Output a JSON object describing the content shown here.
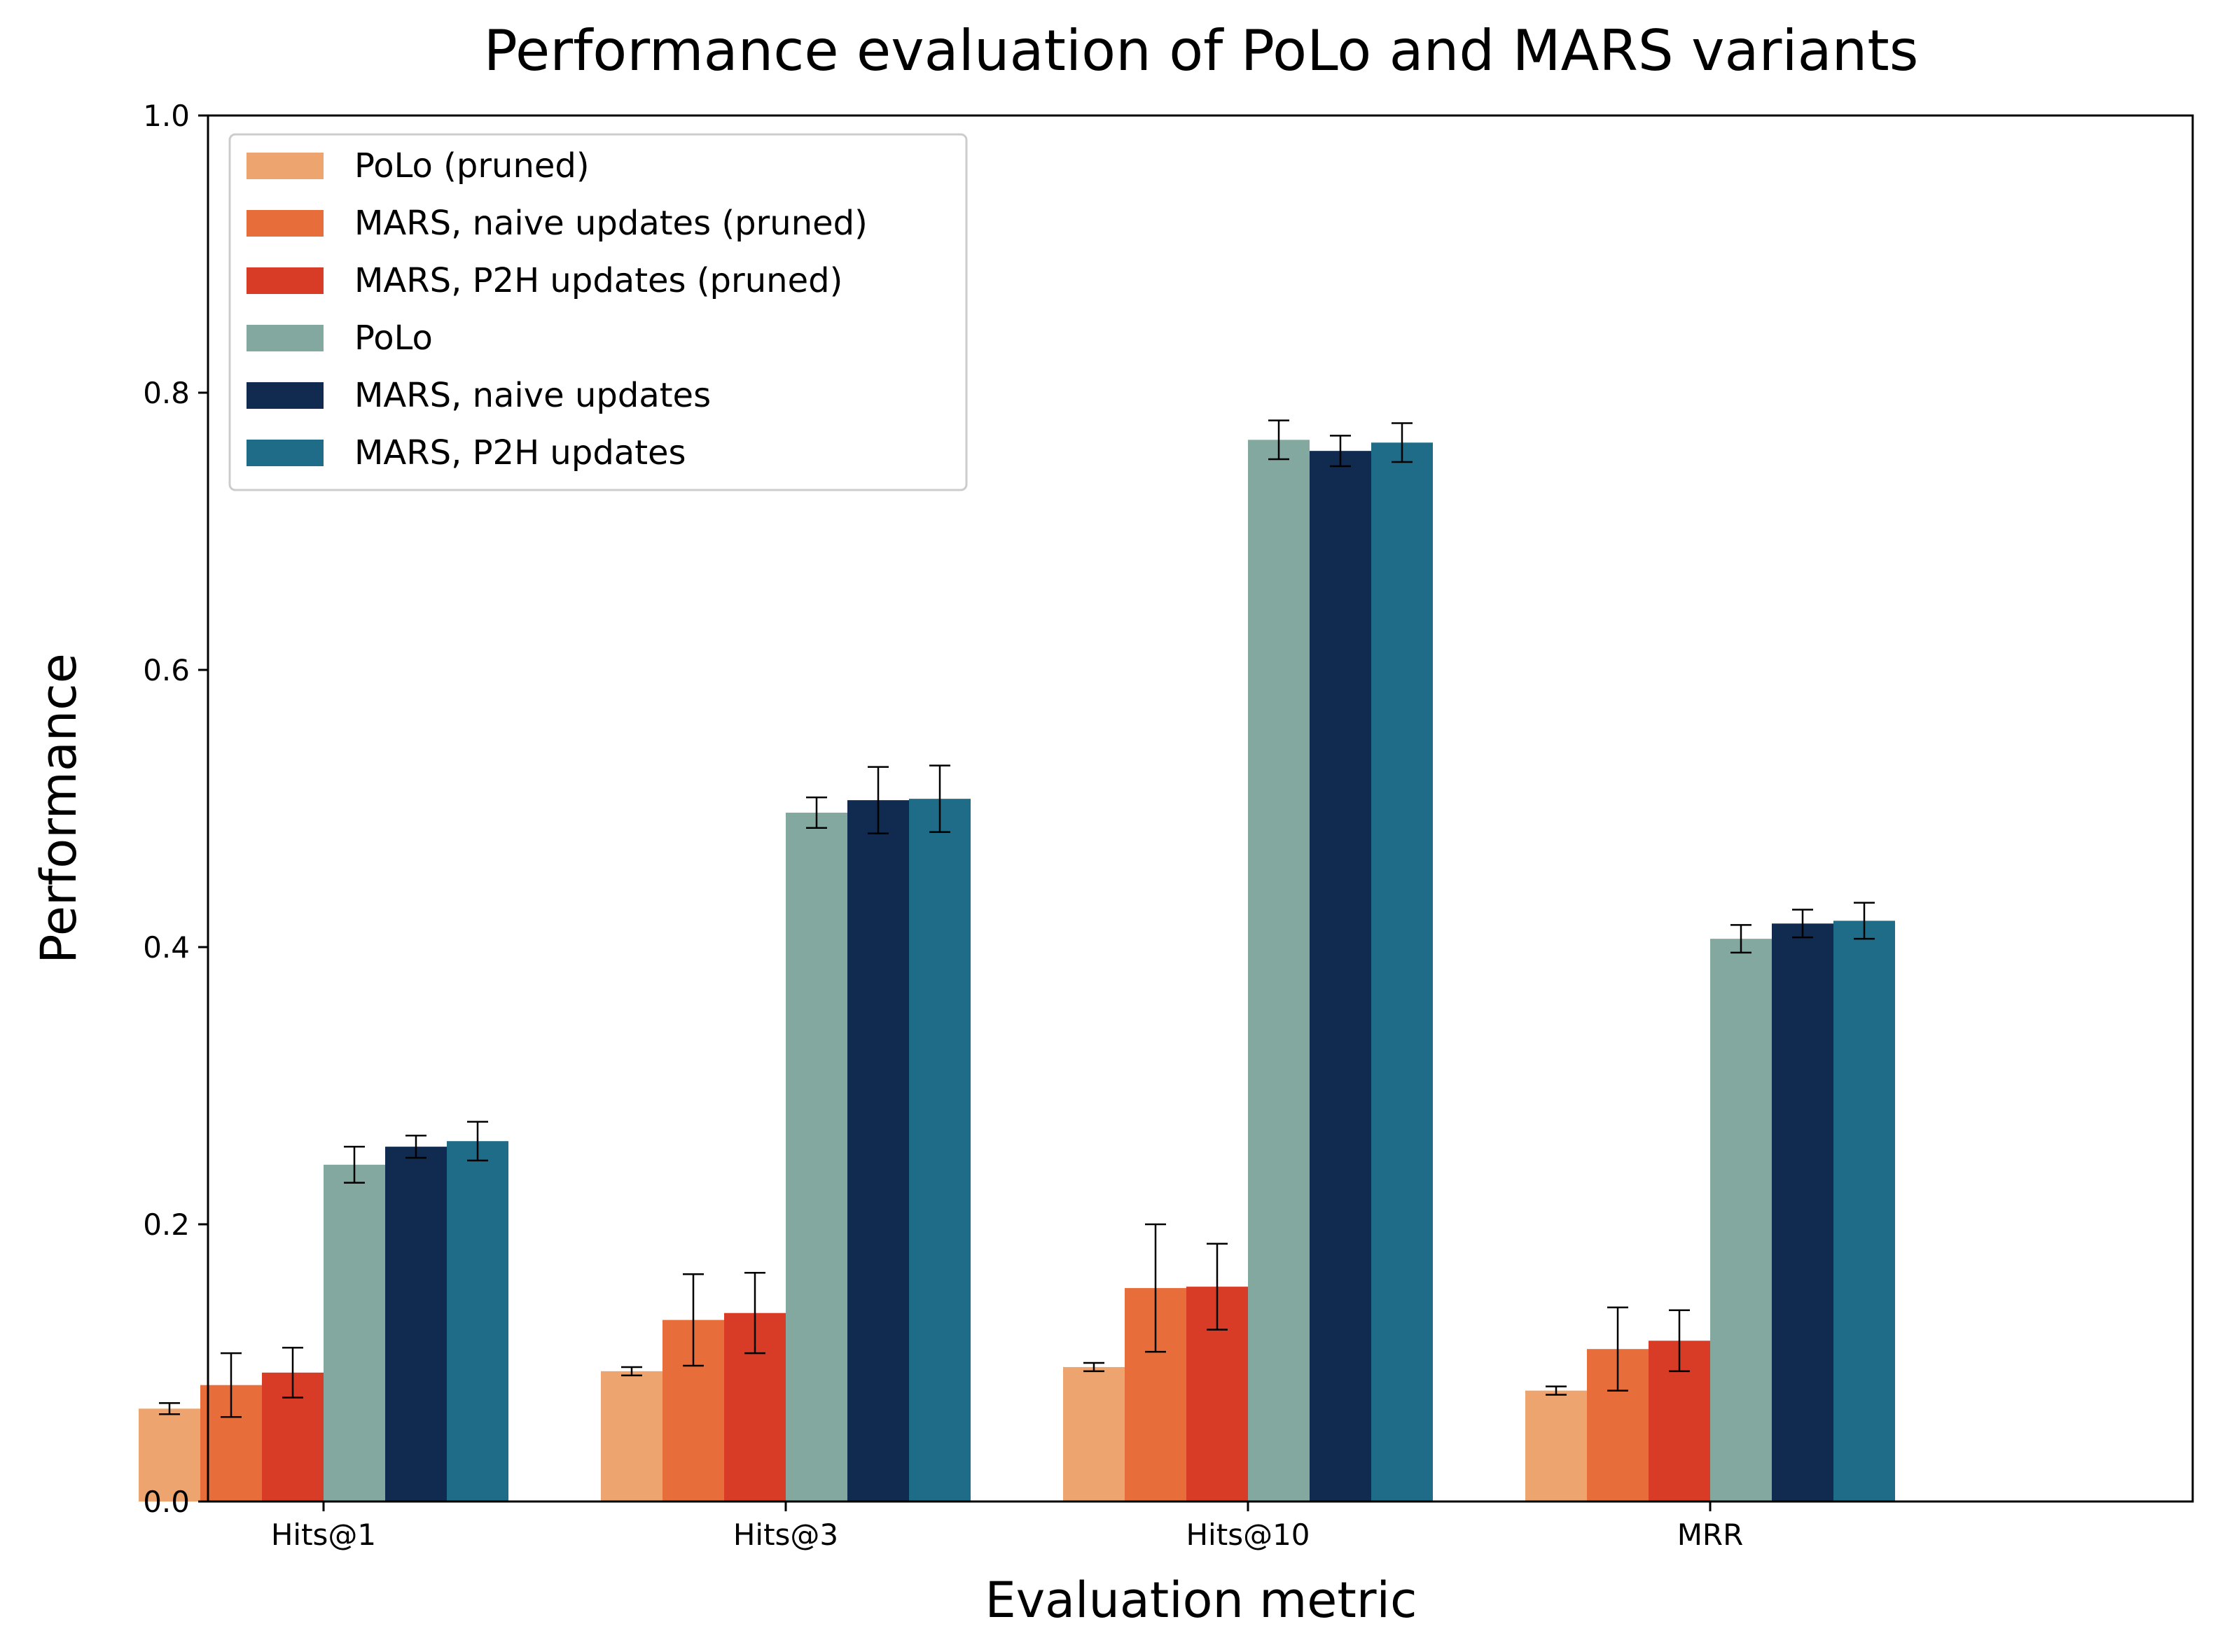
{
  "chart_data": {
    "type": "bar",
    "title": "Performance evaluation of PoLo and MARS variants",
    "xlabel": "Evaluation metric",
    "ylabel": "Performance",
    "ylim": [
      0,
      1.0
    ],
    "yticks": [
      "0.0",
      "0.2",
      "0.4",
      "0.6",
      "0.8",
      "1.0"
    ],
    "categories": [
      "Hits@1",
      "Hits@3",
      "Hits@10",
      "MRR"
    ],
    "grid": false,
    "legend_position": "top-left",
    "series": [
      {
        "name": "PoLo (pruned)",
        "color": "#eda46e",
        "values": [
          0.067,
          0.094,
          0.097,
          0.08
        ],
        "errors": [
          0.004,
          0.003,
          0.003,
          0.003
        ]
      },
      {
        "name": "MARS, naive updates (pruned)",
        "color": "#e76e3b",
        "values": [
          0.084,
          0.131,
          0.154,
          0.11
        ],
        "errors": [
          0.023,
          0.033,
          0.046,
          0.03
        ]
      },
      {
        "name": "MARS, P2H updates (pruned)",
        "color": "#d83c26",
        "values": [
          0.093,
          0.136,
          0.155,
          0.116
        ],
        "errors": [
          0.018,
          0.029,
          0.031,
          0.022
        ]
      },
      {
        "name": "PoLo",
        "color": "#82a89f",
        "values": [
          0.243,
          0.497,
          0.766,
          0.406
        ],
        "errors": [
          0.013,
          0.011,
          0.014,
          0.01
        ]
      },
      {
        "name": "MARS, naive updates",
        "color": "#112a50",
        "values": [
          0.256,
          0.506,
          0.758,
          0.417
        ],
        "errors": [
          0.008,
          0.024,
          0.011,
          0.01
        ]
      },
      {
        "name": "MARS, P2H updates",
        "color": "#1f6c89",
        "values": [
          0.26,
          0.507,
          0.764,
          0.419
        ],
        "errors": [
          0.014,
          0.024,
          0.014,
          0.013
        ]
      }
    ]
  }
}
